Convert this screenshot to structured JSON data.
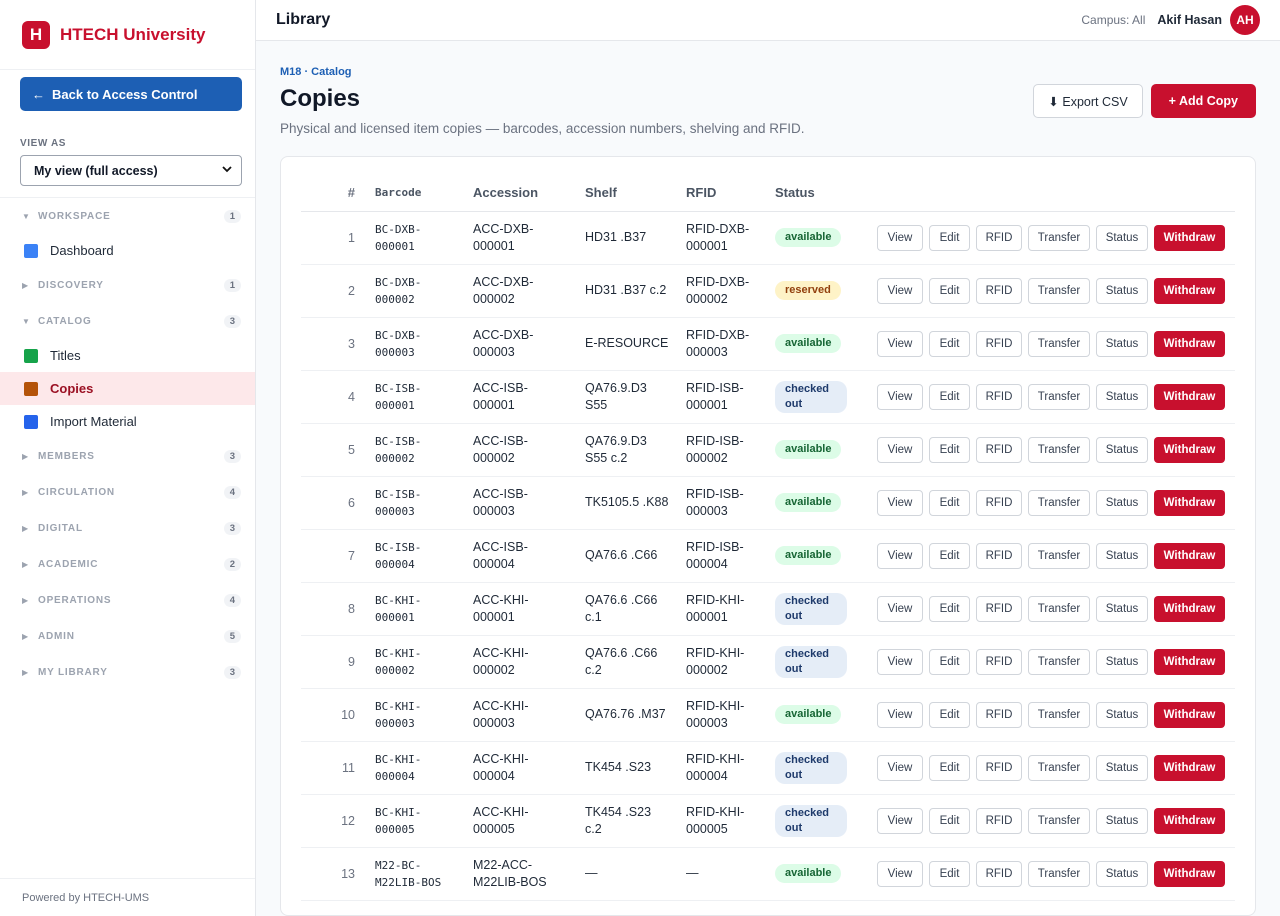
{
  "brand": {
    "logo_letter": "H",
    "name": "HTECH University"
  },
  "sidebar": {
    "back_label": "Back to Access Control",
    "view_as_label": "VIEW AS",
    "view_as_value": "My view (full access)",
    "groups": [
      {
        "name": "WORKSPACE",
        "count": "1",
        "expanded": true,
        "items": [
          {
            "label": "Dashboard",
            "icon": "chart-icon",
            "color": "#3b82f6"
          }
        ]
      },
      {
        "name": "DISCOVERY",
        "count": "1",
        "expanded": false,
        "items": []
      },
      {
        "name": "CATALOG",
        "count": "3",
        "expanded": true,
        "items": [
          {
            "label": "Titles",
            "icon": "books-icon",
            "color": "#16a34a"
          },
          {
            "label": "Copies",
            "icon": "package-icon",
            "color": "#b45309",
            "active": true
          },
          {
            "label": "Import Material",
            "icon": "inbox-tray-icon",
            "color": "#2563eb"
          }
        ]
      },
      {
        "name": "MEMBERS",
        "count": "3",
        "expanded": false,
        "items": []
      },
      {
        "name": "CIRCULATION",
        "count": "4",
        "expanded": false,
        "items": []
      },
      {
        "name": "DIGITAL",
        "count": "3",
        "expanded": false,
        "items": []
      },
      {
        "name": "ACADEMIC",
        "count": "2",
        "expanded": false,
        "items": []
      },
      {
        "name": "OPERATIONS",
        "count": "4",
        "expanded": false,
        "items": []
      },
      {
        "name": "ADMIN",
        "count": "5",
        "expanded": false,
        "items": []
      },
      {
        "name": "MY LIBRARY",
        "count": "3",
        "expanded": false,
        "items": []
      }
    ],
    "footer": "Powered by HTECH-UMS"
  },
  "topbar": {
    "title": "Library",
    "campus": "Campus: All",
    "user": "Akif Hasan",
    "avatar_initials": "AH"
  },
  "page": {
    "kicker": "M18 · Catalog",
    "title": "Copies",
    "subtitle": "Physical and licensed item copies — barcodes, accession numbers, shelving and RFID.",
    "export_label": "⬇ Export CSV",
    "add_label": "+ Add Copy"
  },
  "table": {
    "headers": {
      "num": "#",
      "barcode": "Barcode",
      "accession": "Accession",
      "shelf": "Shelf",
      "rfid": "RFID",
      "status": "Status"
    },
    "actions": [
      "View",
      "Edit",
      "RFID",
      "Transfer",
      "Status",
      "Withdraw"
    ],
    "rows": [
      {
        "num": "1",
        "barcode": [
          "BC-DXB-",
          "000001"
        ],
        "accession": [
          "ACC-DXB-",
          "000001"
        ],
        "shelf": [
          "HD31 .B37"
        ],
        "rfid": [
          "RFID-DXB-",
          "000001"
        ],
        "status": "available"
      },
      {
        "num": "2",
        "barcode": [
          "BC-DXB-",
          "000002"
        ],
        "accession": [
          "ACC-DXB-",
          "000002"
        ],
        "shelf": [
          "HD31 .B37 c.2"
        ],
        "rfid": [
          "RFID-DXB-",
          "000002"
        ],
        "status": "reserved"
      },
      {
        "num": "3",
        "barcode": [
          "BC-DXB-",
          "000003"
        ],
        "accession": [
          "ACC-DXB-",
          "000003"
        ],
        "shelf": [
          "E-RESOURCE"
        ],
        "rfid": [
          "RFID-DXB-",
          "000003"
        ],
        "status": "available"
      },
      {
        "num": "4",
        "barcode": [
          "BC-ISB-",
          "000001"
        ],
        "accession": [
          "ACC-ISB-",
          "000001"
        ],
        "shelf": [
          "QA76.9.D3",
          "S55"
        ],
        "rfid": [
          "RFID-ISB-",
          "000001"
        ],
        "status": "checked out"
      },
      {
        "num": "5",
        "barcode": [
          "BC-ISB-",
          "000002"
        ],
        "accession": [
          "ACC-ISB-",
          "000002"
        ],
        "shelf": [
          "QA76.9.D3",
          "S55 c.2"
        ],
        "rfid": [
          "RFID-ISB-",
          "000002"
        ],
        "status": "available"
      },
      {
        "num": "6",
        "barcode": [
          "BC-ISB-",
          "000003"
        ],
        "accession": [
          "ACC-ISB-",
          "000003"
        ],
        "shelf": [
          "TK5105.5 .K88"
        ],
        "rfid": [
          "RFID-ISB-",
          "000003"
        ],
        "status": "available"
      },
      {
        "num": "7",
        "barcode": [
          "BC-ISB-",
          "000004"
        ],
        "accession": [
          "ACC-ISB-",
          "000004"
        ],
        "shelf": [
          "QA76.6 .C66"
        ],
        "rfid": [
          "RFID-ISB-",
          "000004"
        ],
        "status": "available"
      },
      {
        "num": "8",
        "barcode": [
          "BC-KHI-",
          "000001"
        ],
        "accession": [
          "ACC-KHI-",
          "000001"
        ],
        "shelf": [
          "QA76.6 .C66",
          "c.1"
        ],
        "rfid": [
          "RFID-KHI-",
          "000001"
        ],
        "status": "checked out"
      },
      {
        "num": "9",
        "barcode": [
          "BC-KHI-",
          "000002"
        ],
        "accession": [
          "ACC-KHI-",
          "000002"
        ],
        "shelf": [
          "QA76.6 .C66",
          "c.2"
        ],
        "rfid": [
          "RFID-KHI-",
          "000002"
        ],
        "status": "checked out"
      },
      {
        "num": "10",
        "barcode": [
          "BC-KHI-",
          "000003"
        ],
        "accession": [
          "ACC-KHI-",
          "000003"
        ],
        "shelf": [
          "QA76.76 .M37"
        ],
        "rfid": [
          "RFID-KHI-",
          "000003"
        ],
        "status": "available"
      },
      {
        "num": "11",
        "barcode": [
          "BC-KHI-",
          "000004"
        ],
        "accession": [
          "ACC-KHI-",
          "000004"
        ],
        "shelf": [
          "TK454 .S23"
        ],
        "rfid": [
          "RFID-KHI-",
          "000004"
        ],
        "status": "checked out"
      },
      {
        "num": "12",
        "barcode": [
          "BC-KHI-",
          "000005"
        ],
        "accession": [
          "ACC-KHI-",
          "000005"
        ],
        "shelf": [
          "TK454 .S23",
          "c.2"
        ],
        "rfid": [
          "RFID-KHI-",
          "000005"
        ],
        "status": "checked out"
      },
      {
        "num": "13",
        "barcode": [
          "M22-BC-",
          "M22LIB-BOS"
        ],
        "accession": [
          "M22-ACC-",
          "M22LIB-BOS"
        ],
        "shelf": [
          "—"
        ],
        "rfid": [
          "—"
        ],
        "status": "available"
      }
    ]
  }
}
